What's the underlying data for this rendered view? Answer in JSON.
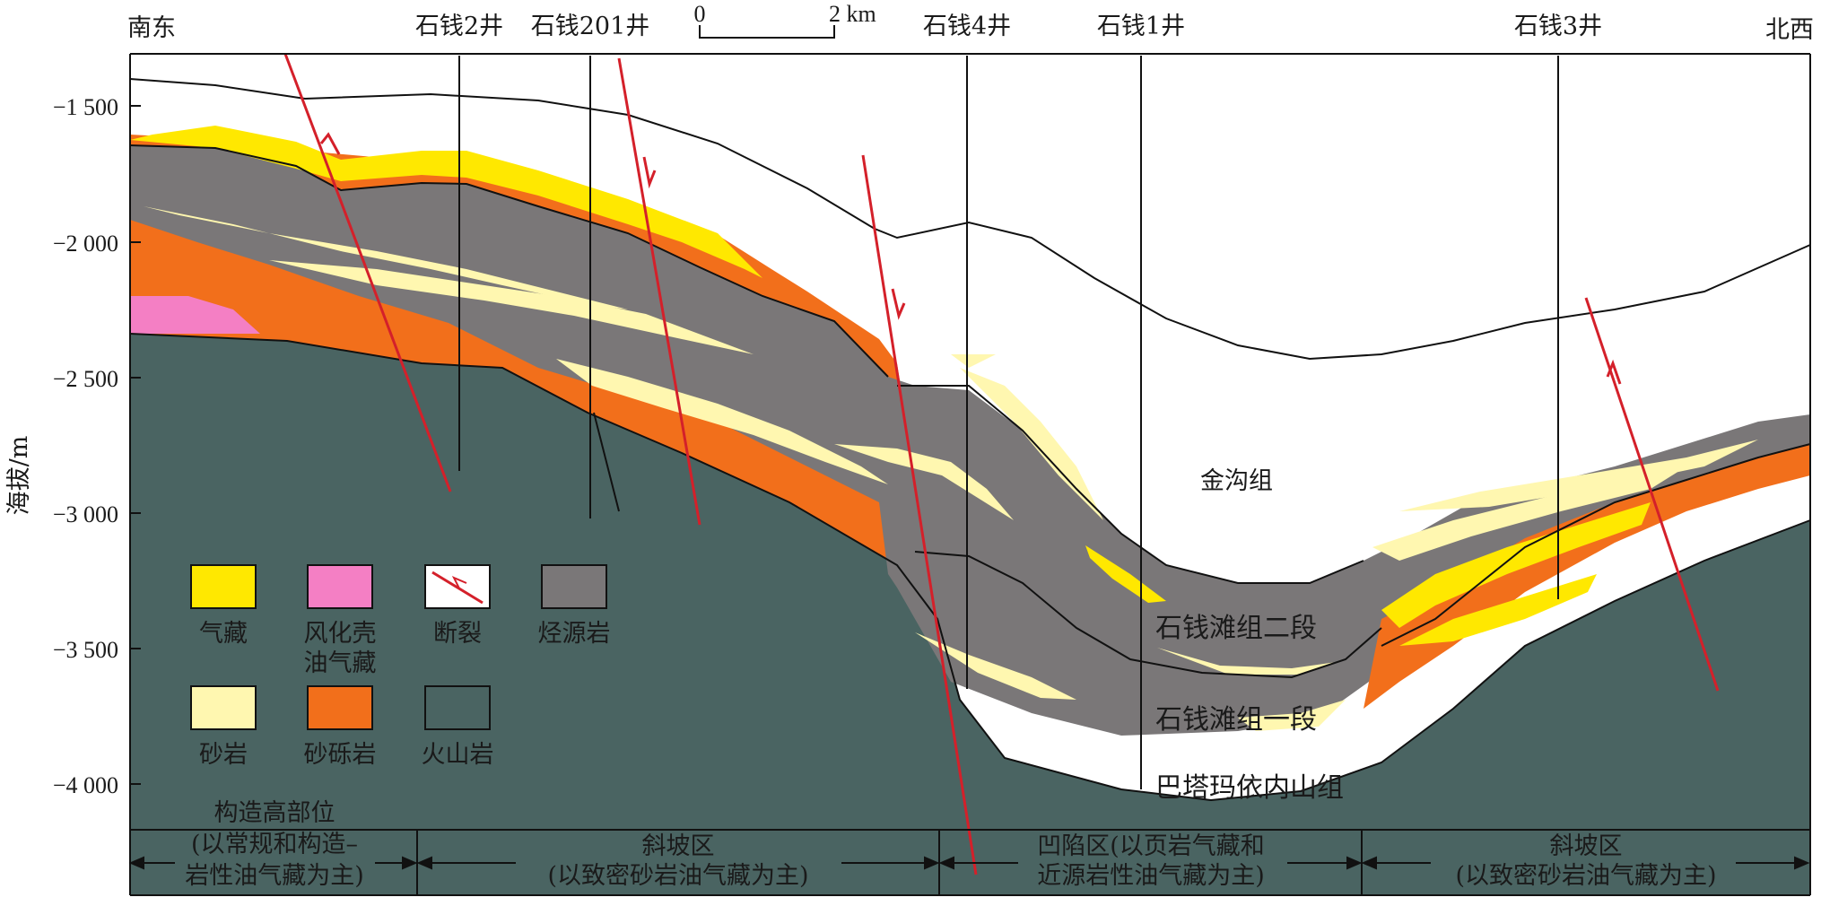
{
  "colors": {
    "gas": "#ffe800",
    "weathered_crust": "#f47fc4",
    "fault": "#d4202a",
    "source_rock": "#7a7778",
    "sandstone": "#fff7b0",
    "glutenite": "#f26f1b",
    "volcanic": "#4a6462"
  },
  "header": {
    "left_dir": "南东",
    "right_dir": "北西",
    "wells": [
      "石钱2井",
      "石钱201井",
      "石钱4井",
      "石钱1井",
      "石钱3井"
    ],
    "scale_zero": "0",
    "scale_end": "2 km"
  },
  "axis": {
    "ylabel": "海拔/m",
    "ticks": [
      "−1 500",
      "−2 000",
      "−2 500",
      "−3 000",
      "−3 500",
      "−4 000"
    ]
  },
  "formations": {
    "jingou": "金沟组",
    "shiqiantan_2": "石钱滩组二段",
    "shiqiantan_1": "石钱滩组一段",
    "batamayineishan": "巴塔玛依内山组"
  },
  "legend": {
    "gas": "气藏",
    "weathered_1": "风化壳",
    "weathered_2": "油气藏",
    "fault": "断裂",
    "source_rock": "烃源岩",
    "sandstone": "砂岩",
    "glutenite": "砂砾岩",
    "volcanic": "火山岩"
  },
  "zones": [
    {
      "line1": "构造高部位",
      "line2": "(以常规和构造–",
      "line3": "岩性油气藏为主)"
    },
    {
      "line1": "斜坡区",
      "line2": "(以致密砂岩油气藏为主)"
    },
    {
      "line1": "凹陷区(以页岩气藏和",
      "line2": "近源岩性油气藏为主)"
    },
    {
      "line1": "斜坡区",
      "line2": "(以致密砂岩油气藏为主)"
    }
  ]
}
